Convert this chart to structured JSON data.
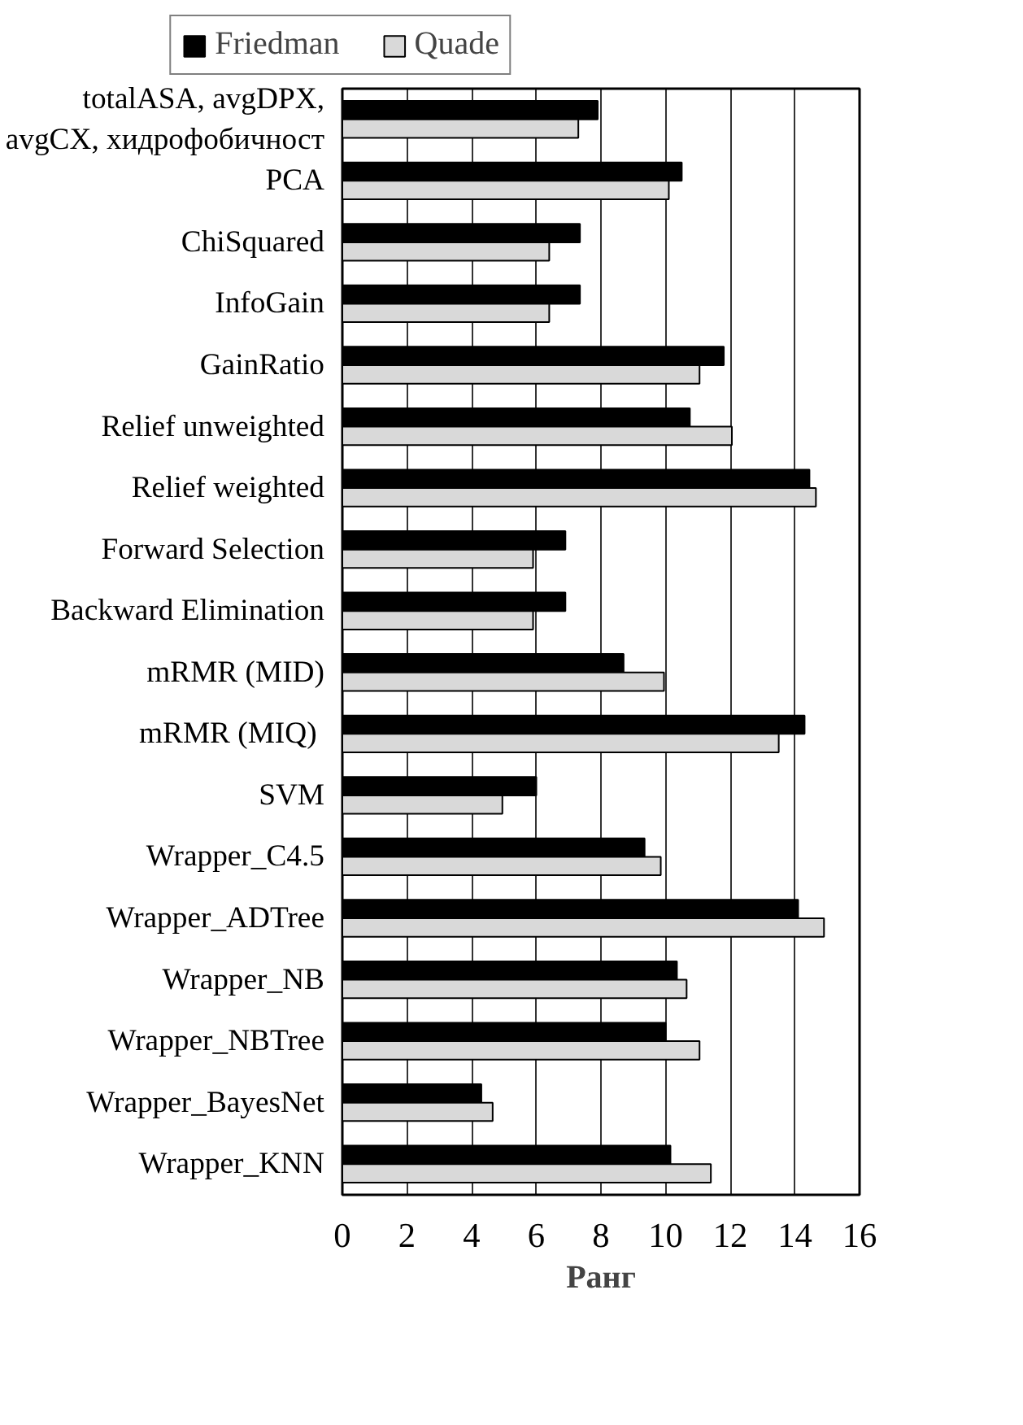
{
  "chart_data": {
    "type": "bar",
    "orientation": "horizontal",
    "xlabel": "Ранг",
    "categories": [
      "totalASA, avgDPX,\navgCX, хидрофобичност",
      "PCA",
      "ChiSquared",
      "InfoGain",
      "GainRatio",
      "Relief unweighted",
      "Relief weighted",
      "Forward Selection",
      "Backward Elimination",
      "mRMR (MID)",
      "mRMR  (MIQ)",
      "SVM",
      "Wrapper_C4.5",
      "Wrapper_ADTree",
      "Wrapper_NB",
      "Wrapper_NBTree",
      "Wrapper_BayesNet",
      "Wrapper_KNN"
    ],
    "series": [
      {
        "name": "Friedman",
        "color": "#000000",
        "values": [
          7.9,
          10.5,
          7.35,
          7.35,
          11.8,
          10.75,
          14.45,
          6.9,
          6.9,
          8.7,
          14.3,
          6.0,
          9.35,
          14.1,
          10.35,
          10.0,
          4.3,
          10.15
        ]
      },
      {
        "name": "Quade",
        "color": "#d9d9d9",
        "values": [
          7.3,
          10.1,
          6.4,
          6.4,
          11.05,
          12.05,
          14.65,
          5.9,
          5.9,
          9.95,
          13.5,
          4.95,
          9.85,
          14.9,
          10.65,
          11.05,
          4.65,
          11.4
        ]
      }
    ],
    "xlim": [
      0,
      16
    ],
    "xticks": [
      0,
      2,
      4,
      6,
      8,
      10,
      12,
      14,
      16
    ],
    "grid": "x",
    "legend": "top"
  }
}
